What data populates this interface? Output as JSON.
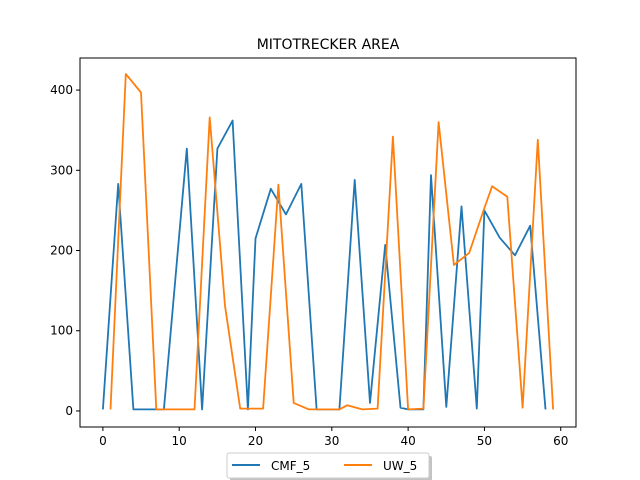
{
  "chart_data": {
    "type": "line",
    "title": "MITOTRECKER AREA",
    "xlabel": "",
    "ylabel": "",
    "xlim": [
      -3,
      62
    ],
    "ylim": [
      -20,
      440
    ],
    "xticks": [
      0,
      10,
      20,
      30,
      40,
      50,
      60
    ],
    "yticks": [
      0,
      100,
      200,
      300,
      400
    ],
    "grid": false,
    "legend_position": "bottom-center",
    "series": [
      {
        "name": "CMF_5",
        "color": "#1f77b4",
        "x": [
          0,
          2,
          4,
          7,
          8,
          11,
          13,
          15,
          17,
          19,
          20,
          22,
          24,
          26,
          28,
          30,
          31,
          33,
          35,
          37,
          39,
          40,
          42,
          43,
          45,
          47,
          49,
          50,
          52,
          54,
          56,
          58
        ],
        "y": [
          2,
          283,
          2,
          2,
          2,
          327,
          2,
          327,
          362,
          2,
          215,
          277,
          245,
          283,
          2,
          2,
          2,
          288,
          10,
          207,
          4,
          2,
          2,
          294,
          5,
          255,
          3,
          250,
          216,
          194,
          231,
          2
        ]
      },
      {
        "name": "UW_5",
        "color": "#ff7f0e",
        "x": [
          1,
          3,
          5,
          7,
          9,
          11,
          12,
          14,
          16,
          18,
          20,
          21,
          23,
          25,
          27,
          29,
          31,
          32,
          34,
          36,
          38,
          40,
          42,
          44,
          46,
          48,
          50,
          51,
          53,
          55,
          57,
          59
        ],
        "y": [
          2,
          420,
          397,
          2,
          2,
          2,
          2,
          366,
          131,
          3,
          3,
          3,
          282,
          10,
          2,
          2,
          2,
          7,
          2,
          3,
          342,
          2,
          3,
          360,
          182,
          197,
          253,
          280,
          267,
          4,
          338,
          2
        ]
      }
    ]
  }
}
